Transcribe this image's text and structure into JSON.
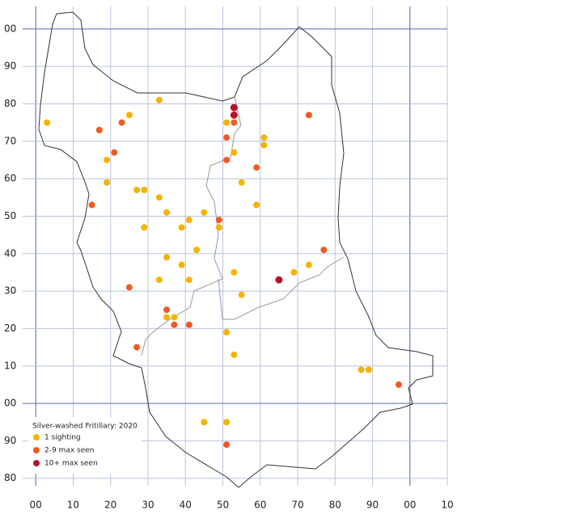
{
  "chart_data": {
    "type": "scatter",
    "legend_title": "Silver-washed Fritillary:  2020",
    "xlim": [
      -3.5,
      110
    ],
    "ylim": [
      -22,
      106
    ],
    "grid": true,
    "xticks": [
      {
        "value": 0,
        "label": "00"
      },
      10,
      20,
      30,
      40,
      50,
      60,
      70,
      80,
      90,
      {
        "value": 100,
        "label": "00"
      },
      {
        "value": 110,
        "label": "10"
      }
    ],
    "yticks": [
      {
        "value": 100,
        "label": "00"
      },
      90,
      80,
      70,
      60,
      50,
      40,
      30,
      20,
      10,
      {
        "value": 0,
        "label": "00"
      },
      {
        "value": -10,
        "label": "90"
      },
      {
        "value": -20,
        "label": "80"
      }
    ],
    "series": [
      {
        "name": "1 sighting",
        "color": "#f4b400",
        "x": [
          3,
          25,
          33,
          19,
          19,
          27,
          29,
          33,
          35,
          41,
          45,
          29,
          39,
          49,
          35,
          39,
          43,
          33,
          41,
          53,
          55,
          35,
          37,
          51,
          53,
          51,
          53,
          61,
          61,
          55,
          59,
          69,
          73,
          87,
          89,
          45,
          51
        ],
        "values": [
          75,
          77,
          81,
          65,
          59,
          57,
          57,
          55,
          51,
          49,
          51,
          47,
          47,
          47,
          39,
          37,
          41,
          33,
          33,
          35,
          29,
          23,
          23,
          19,
          13,
          75,
          67,
          71,
          69,
          59,
          53,
          35,
          37,
          9,
          9,
          -5,
          -5
        ]
      },
      {
        "name": "2-9 max seen",
        "color": "#f15a24",
        "x": [
          17,
          23,
          21,
          15,
          25,
          35,
          37,
          41,
          27,
          49,
          51,
          51,
          53,
          59,
          73,
          77,
          97,
          51
        ],
        "values": [
          73,
          75,
          67,
          53,
          31,
          25,
          21,
          21,
          15,
          49,
          71,
          65,
          75,
          63,
          77,
          41,
          5,
          -11
        ]
      },
      {
        "name": "10+ max seen",
        "color": "#b5122e",
        "x": [
          53,
          53,
          65
        ],
        "values": [
          79,
          77,
          33
        ]
      }
    ]
  }
}
